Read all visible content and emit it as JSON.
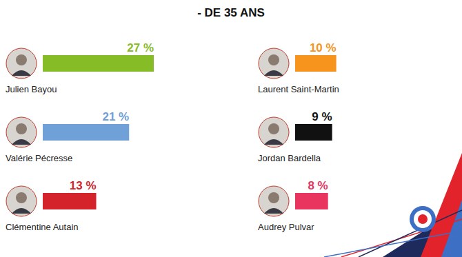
{
  "chart_data": {
    "type": "bar",
    "title": "- DE 35 ANS",
    "orientation": "horizontal",
    "categories": [
      "Julien Bayou",
      "Valérie Pécresse",
      "Clémentine Autain",
      "Laurent Saint-Martin",
      "Jordan Bardella",
      "Audrey Pulvar"
    ],
    "values": [
      27,
      21,
      13,
      10,
      9,
      8
    ],
    "value_labels": [
      "27 %",
      "21 %",
      "13 %",
      "10 %",
      "9 %",
      "8 %"
    ],
    "colors": [
      "#86bc25",
      "#6fa0d8",
      "#d4232a",
      "#f7941d",
      "#111111",
      "#e8345f"
    ],
    "data_labels": true,
    "tick_labels": false
  }
}
